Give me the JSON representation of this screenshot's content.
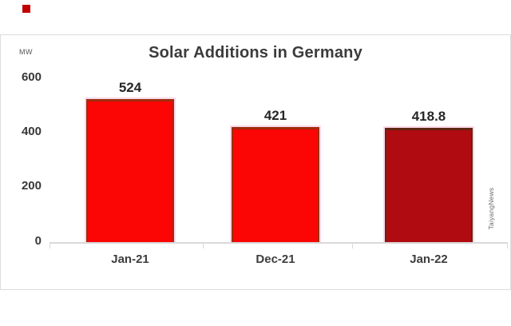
{
  "brand": {
    "mark_color": "#c00000"
  },
  "chart_data": {
    "type": "bar",
    "title": "Solar Additions in Germany",
    "unit_label": "MW",
    "categories": [
      "Jan-21",
      "Dec-21",
      "Jan-22"
    ],
    "values": [
      524,
      421,
      418.8
    ],
    "value_labels": [
      "524",
      "421",
      "418.8"
    ],
    "bar_fill_colors": [
      "#fb0505",
      "#fb0505",
      "#b00b10"
    ],
    "bar_edge_colors": [
      "#9c2e0e",
      "#9c2e0e",
      "#5f2714"
    ],
    "bar_outline_color": "#fcd9e9",
    "yticks": [
      0,
      200,
      400,
      600
    ],
    "ylim": [
      0,
      600
    ],
    "grid": false,
    "legend": "none",
    "axis_color": "#d9d9d9",
    "watermark": "TaiyangNews"
  }
}
